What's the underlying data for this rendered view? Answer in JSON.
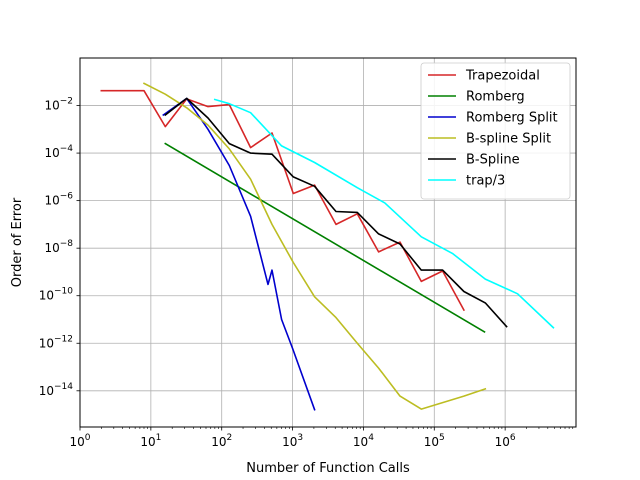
{
  "chart_data": {
    "type": "line",
    "xlabel": "Number of Function Calls",
    "ylabel": "Order of Error",
    "xscale": "log",
    "yscale": "log",
    "xlim": [
      1,
      10000000
    ],
    "ylim": [
      3e-16,
      1
    ],
    "grid": true,
    "legend_position": "top-right",
    "x_ticks": [
      {
        "value": 1,
        "base": "10",
        "exp": "0"
      },
      {
        "value": 10,
        "base": "10",
        "exp": "1"
      },
      {
        "value": 100,
        "base": "10",
        "exp": "2"
      },
      {
        "value": 1000,
        "base": "10",
        "exp": "3"
      },
      {
        "value": 10000,
        "base": "10",
        "exp": "4"
      },
      {
        "value": 100000,
        "base": "10",
        "exp": "5"
      },
      {
        "value": 1000000,
        "base": "10",
        "exp": "6"
      }
    ],
    "y_ticks": [
      {
        "value": 1e-14,
        "base": "10",
        "exp": "−14"
      },
      {
        "value": 1e-12,
        "base": "10",
        "exp": "−12"
      },
      {
        "value": 1e-10,
        "base": "10",
        "exp": "−10"
      },
      {
        "value": 1e-08,
        "base": "10",
        "exp": "−8"
      },
      {
        "value": 1e-06,
        "base": "10",
        "exp": "−6"
      },
      {
        "value": 0.0001,
        "base": "10",
        "exp": "−4"
      },
      {
        "value": 0.01,
        "base": "10",
        "exp": "−2"
      }
    ],
    "series": [
      {
        "name": "Trapezoidal",
        "color": "#d62728",
        "x": [
          2,
          8,
          16,
          32,
          64,
          128,
          256,
          512,
          1024,
          2048,
          4096,
          8192,
          16384,
          32768,
          65536,
          131072,
          262144
        ],
        "y": [
          0.042,
          0.042,
          0.0013,
          0.019,
          0.009,
          0.011,
          0.00017,
          0.0007,
          2e-06,
          4.5e-06,
          1e-07,
          2.8e-07,
          7e-09,
          1.8e-08,
          4e-10,
          1.1e-09,
          2.5e-11
        ]
      },
      {
        "name": "Romberg",
        "color": "#008000",
        "x": [
          16,
          512000
        ],
        "y": [
          0.00025,
          3e-12
        ]
      },
      {
        "name": "Romberg Split",
        "color": "#0000cd",
        "x": [
          15,
          32,
          64,
          128,
          256,
          450,
          512,
          700,
          1000,
          2048
        ],
        "y": [
          0.004,
          0.02,
          0.001,
          3e-05,
          2.2e-07,
          3e-10,
          1.2e-09,
          1e-11,
          6e-13,
          1.6e-15
        ]
      },
      {
        "name": "B-spline Split",
        "color": "#bcbd22",
        "x": [
          8,
          16,
          32,
          64,
          128,
          256,
          512,
          1024,
          2048,
          4096,
          8192,
          16384,
          32768,
          65536,
          131072,
          262144,
          524288
        ],
        "y": [
          0.085,
          0.03,
          0.008,
          0.0015,
          0.00015,
          8e-06,
          1e-07,
          2.5e-09,
          9e-11,
          1.2e-11,
          1e-12,
          9e-14,
          6e-15,
          1.7e-15,
          3.2e-15,
          6e-15,
          1.2e-14
        ]
      },
      {
        "name": "B-Spline",
        "color": "#000000",
        "x": [
          16,
          32,
          64,
          128,
          256,
          512,
          1024,
          2048,
          4096,
          8192,
          16384,
          32768,
          65536,
          131072,
          262144,
          524288,
          1048576
        ],
        "y": [
          0.004,
          0.02,
          0.003,
          0.00025,
          0.0001,
          9e-05,
          1e-05,
          4e-06,
          3.5e-07,
          3.2e-07,
          4e-08,
          1.5e-08,
          1.2e-09,
          1.2e-09,
          1.5e-10,
          5e-11,
          5e-12
        ]
      },
      {
        "name": "trap/3",
        "color": "#00ffff",
        "x": [
          80,
          128,
          256,
          700,
          2048,
          8192,
          20000,
          65536,
          180000,
          524288,
          1500000,
          4800000
        ],
        "y": [
          0.018,
          0.012,
          0.005,
          0.0002,
          4e-05,
          3.5e-06,
          8e-07,
          3e-08,
          6e-09,
          5e-10,
          1.2e-10,
          4.5e-12
        ]
      }
    ]
  }
}
